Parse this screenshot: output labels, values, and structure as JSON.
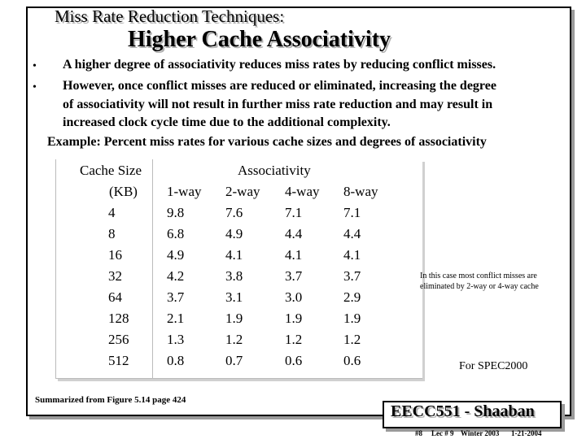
{
  "slide": {
    "subtitle": "Miss Rate Reduction Techniques:",
    "title": "Higher Cache Associativity",
    "bullets": [
      "A higher degree of associativity reduces miss rates by reducing conflict misses.",
      "However, once conflict misses are reduced or eliminated, increasing the degree",
      "of associativity will not result in further miss rate reduction and may result in",
      "increased clock cycle time due to the additional complexity."
    ],
    "bullet_marks": [
      "•",
      "•"
    ],
    "example": "Example:   Percent miss rates for various cache sizes and degrees of associativity",
    "table": {
      "header_size_1": "Cache Size",
      "header_size_2": "(KB)",
      "header_assoc": "Associativity",
      "columns": [
        "1-way",
        "2-way",
        "4-way",
        "8-way"
      ],
      "rows": [
        [
          "4",
          "9.8",
          "7.6",
          "7.1",
          "7.1"
        ],
        [
          "8",
          "6.8",
          "4.9",
          "4.4",
          "4.4"
        ],
        [
          "16",
          "4.9",
          "4.1",
          "4.1",
          "4.1"
        ],
        [
          "32",
          "4.2",
          "3.8",
          "3.7",
          "3.7"
        ],
        [
          "64",
          "3.7",
          "3.1",
          "3.0",
          "2.9"
        ],
        [
          "128",
          "2.1",
          "1.9",
          "1.9",
          "1.9"
        ],
        [
          "256",
          "1.3",
          "1.2",
          "1.2",
          "1.2"
        ],
        [
          "512",
          "0.8",
          "0.7",
          "0.6",
          "0.6"
        ]
      ]
    },
    "note": "In this case most conflict misses are eliminated by 2-way or 4-way cache",
    "spec": "For SPEC2000",
    "source": "Summarized from Figure 5.14 page 424",
    "course": "EECC551 - Shaaban",
    "footer": {
      "slide_no": "#8",
      "lecture": "Lec # 9",
      "term": "Winter 2003",
      "date": "1-21-2004"
    }
  }
}
